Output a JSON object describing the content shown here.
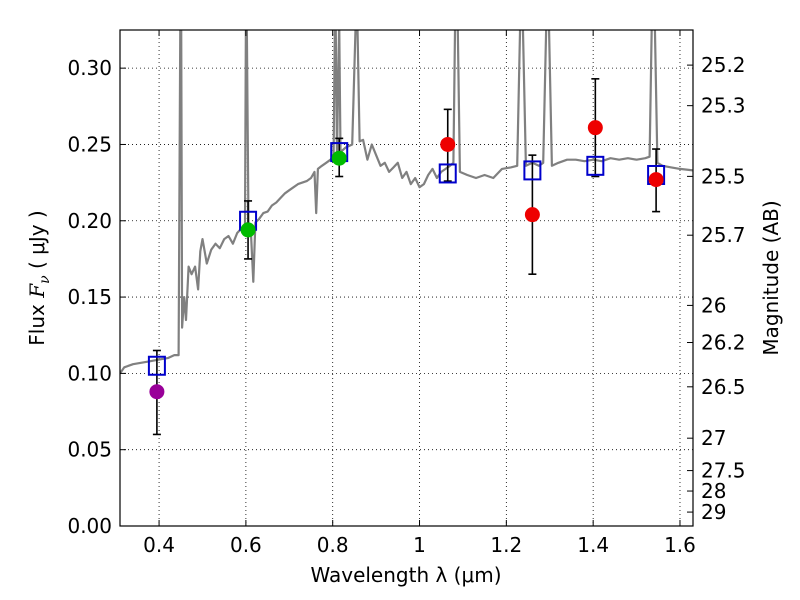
{
  "chart_data": {
    "type": "scatter",
    "xlabel": "Wavelength  λ (μm)",
    "ylabel": "Flux  F_ν  ( μJy )",
    "ylabel_parts": {
      "prefix": "Flux  ",
      "var": "F",
      "sub": "ν",
      "suffix": "  ( μJy )"
    },
    "y2label": "Magnitude (AB)",
    "xlim": [
      0.31,
      1.63
    ],
    "ylim": [
      0.0,
      0.325
    ],
    "xticks": [
      0.4,
      0.6,
      0.8,
      1.0,
      1.2,
      1.4,
      1.6
    ],
    "xtick_labels": [
      "0.4",
      "0.6",
      "0.8",
      "1",
      "1.2",
      "1.4",
      "1.6"
    ],
    "yticks": [
      0.0,
      0.05,
      0.1,
      0.15,
      0.2,
      0.25,
      0.3
    ],
    "ytick_labels": [
      "0.00",
      "0.05",
      "0.10",
      "0.15",
      "0.20",
      "0.25",
      "0.30"
    ],
    "y2ticks": [
      25.2,
      25.3,
      25.5,
      25.7,
      26,
      26.2,
      26.5,
      27,
      27.5,
      28,
      29
    ],
    "y2tick_labels": [
      "25.2",
      "25.3",
      "25.5",
      "25.7",
      "26",
      "26.2",
      "26.5",
      "27",
      "27.5",
      "28",
      "29"
    ],
    "grid": true,
    "colors": {
      "model": "#808080",
      "model_squares": "#0000cc",
      "errorbar": "#000000",
      "purple": "#990099",
      "green": "#00bb00",
      "red": "#ee0000"
    },
    "series": [
      {
        "name": "observed photometry",
        "points": [
          {
            "x": 0.395,
            "y": 0.088,
            "yerr_low": 0.06,
            "yerr_high": 0.115,
            "color": "purple"
          },
          {
            "x": 0.605,
            "y": 0.194,
            "yerr_low": 0.175,
            "yerr_high": 0.213,
            "color": "green"
          },
          {
            "x": 0.815,
            "y": 0.241,
            "yerr_low": 0.229,
            "yerr_high": 0.254,
            "color": "green"
          },
          {
            "x": 1.065,
            "y": 0.25,
            "yerr_low": 0.226,
            "yerr_high": 0.273,
            "color": "red"
          },
          {
            "x": 1.26,
            "y": 0.204,
            "yerr_low": 0.165,
            "yerr_high": 0.243,
            "color": "red"
          },
          {
            "x": 1.405,
            "y": 0.261,
            "yerr_low": 0.229,
            "yerr_high": 0.293,
            "color": "red"
          },
          {
            "x": 1.545,
            "y": 0.227,
            "yerr_low": 0.206,
            "yerr_high": 0.247,
            "color": "red"
          }
        ]
      },
      {
        "name": "model band fluxes",
        "points": [
          {
            "x": 0.395,
            "y": 0.105
          },
          {
            "x": 0.605,
            "y": 0.2
          },
          {
            "x": 0.815,
            "y": 0.245
          },
          {
            "x": 1.065,
            "y": 0.231
          },
          {
            "x": 1.26,
            "y": 0.233
          },
          {
            "x": 1.405,
            "y": 0.236
          },
          {
            "x": 1.545,
            "y": 0.23
          }
        ]
      },
      {
        "name": "model spectrum",
        "points": [
          [
            0.31,
            0.1
          ],
          [
            0.32,
            0.104
          ],
          [
            0.34,
            0.106
          ],
          [
            0.36,
            0.107
          ],
          [
            0.38,
            0.108
          ],
          [
            0.4,
            0.109
          ],
          [
            0.42,
            0.11
          ],
          [
            0.435,
            0.112
          ],
          [
            0.445,
            0.112
          ],
          [
            0.449,
            0.33
          ],
          [
            0.451,
            0.33
          ],
          [
            0.453,
            0.13
          ],
          [
            0.458,
            0.15
          ],
          [
            0.462,
            0.135
          ],
          [
            0.468,
            0.17
          ],
          [
            0.475,
            0.165
          ],
          [
            0.483,
            0.17
          ],
          [
            0.49,
            0.155
          ],
          [
            0.495,
            0.18
          ],
          [
            0.5,
            0.188
          ],
          [
            0.51,
            0.172
          ],
          [
            0.52,
            0.181
          ],
          [
            0.53,
            0.185
          ],
          [
            0.54,
            0.182
          ],
          [
            0.55,
            0.188
          ],
          [
            0.56,
            0.19
          ],
          [
            0.57,
            0.185
          ],
          [
            0.58,
            0.192
          ],
          [
            0.59,
            0.195
          ],
          [
            0.598,
            0.197
          ],
          [
            0.6,
            0.33
          ],
          [
            0.602,
            0.33
          ],
          [
            0.606,
            0.196
          ],
          [
            0.612,
            0.19
          ],
          [
            0.617,
            0.16
          ],
          [
            0.622,
            0.199
          ],
          [
            0.63,
            0.201
          ],
          [
            0.64,
            0.205
          ],
          [
            0.65,
            0.206
          ],
          [
            0.66,
            0.21
          ],
          [
            0.67,
            0.212
          ],
          [
            0.68,
            0.215
          ],
          [
            0.69,
            0.218
          ],
          [
            0.7,
            0.22
          ],
          [
            0.71,
            0.222
          ],
          [
            0.72,
            0.224
          ],
          [
            0.73,
            0.225
          ],
          [
            0.74,
            0.226
          ],
          [
            0.75,
            0.228
          ],
          [
            0.758,
            0.232
          ],
          [
            0.762,
            0.205
          ],
          [
            0.766,
            0.234
          ],
          [
            0.775,
            0.236
          ],
          [
            0.785,
            0.238
          ],
          [
            0.795,
            0.24
          ],
          [
            0.802,
            0.243
          ],
          [
            0.805,
            0.33
          ],
          [
            0.807,
            0.33
          ],
          [
            0.81,
            0.244
          ],
          [
            0.815,
            0.33
          ],
          [
            0.818,
            0.245
          ],
          [
            0.83,
            0.248
          ],
          [
            0.845,
            0.25
          ],
          [
            0.853,
            0.33
          ],
          [
            0.857,
            0.33
          ],
          [
            0.862,
            0.252
          ],
          [
            0.87,
            0.253
          ],
          [
            0.88,
            0.24
          ],
          [
            0.89,
            0.25
          ],
          [
            0.9,
            0.243
          ],
          [
            0.91,
            0.236
          ],
          [
            0.92,
            0.238
          ],
          [
            0.93,
            0.232
          ],
          [
            0.94,
            0.235
          ],
          [
            0.95,
            0.238
          ],
          [
            0.96,
            0.228
          ],
          [
            0.97,
            0.232
          ],
          [
            0.98,
            0.224
          ],
          [
            0.99,
            0.228
          ],
          [
            1.0,
            0.222
          ],
          [
            1.01,
            0.224
          ],
          [
            1.02,
            0.23
          ],
          [
            1.03,
            0.234
          ],
          [
            1.04,
            0.228
          ],
          [
            1.05,
            0.232
          ],
          [
            1.06,
            0.234
          ],
          [
            1.07,
            0.236
          ],
          [
            1.078,
            0.238
          ],
          [
            1.082,
            0.33
          ],
          [
            1.088,
            0.33
          ],
          [
            1.093,
            0.232
          ],
          [
            1.11,
            0.23
          ],
          [
            1.13,
            0.228
          ],
          [
            1.15,
            0.23
          ],
          [
            1.17,
            0.228
          ],
          [
            1.19,
            0.234
          ],
          [
            1.21,
            0.235
          ],
          [
            1.225,
            0.236
          ],
          [
            1.232,
            0.33
          ],
          [
            1.238,
            0.33
          ],
          [
            1.245,
            0.236
          ],
          [
            1.26,
            0.238
          ],
          [
            1.275,
            0.236
          ],
          [
            1.285,
            0.238
          ],
          [
            1.292,
            0.33
          ],
          [
            1.298,
            0.33
          ],
          [
            1.305,
            0.236
          ],
          [
            1.32,
            0.238
          ],
          [
            1.34,
            0.24
          ],
          [
            1.36,
            0.24
          ],
          [
            1.38,
            0.239
          ],
          [
            1.4,
            0.24
          ],
          [
            1.42,
            0.239
          ],
          [
            1.44,
            0.241
          ],
          [
            1.46,
            0.24
          ],
          [
            1.48,
            0.241
          ],
          [
            1.5,
            0.24
          ],
          [
            1.52,
            0.241
          ],
          [
            1.53,
            0.242
          ],
          [
            1.535,
            0.33
          ],
          [
            1.542,
            0.33
          ],
          [
            1.548,
            0.238
          ],
          [
            1.56,
            0.236
          ],
          [
            1.58,
            0.235
          ],
          [
            1.6,
            0.234
          ],
          [
            1.63,
            0.233
          ]
        ]
      }
    ]
  }
}
